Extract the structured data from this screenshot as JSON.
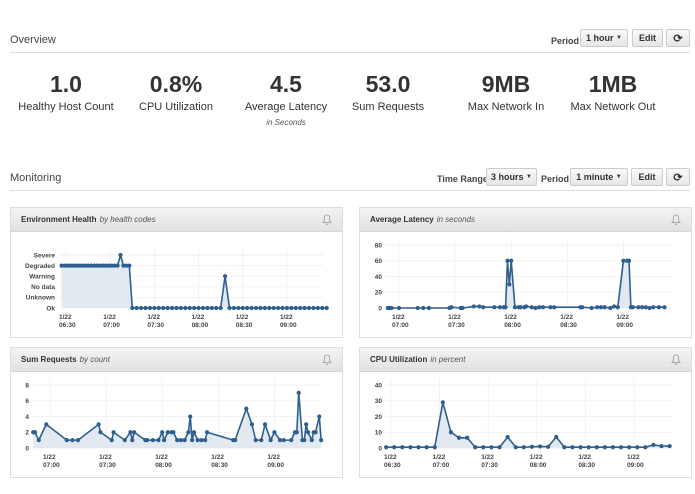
{
  "overview": {
    "title": "Overview",
    "period_label": "Period",
    "period_value": "1 hour",
    "edit_label": "Edit",
    "refresh_icon": "refresh-icon",
    "stats": [
      {
        "value": "1.0",
        "label": "Healthy Host Count"
      },
      {
        "value": "0.8%",
        "label": "CPU Utilization"
      },
      {
        "value": "4.5",
        "label": "Average Latency",
        "sub": "in Seconds"
      },
      {
        "value": "53.0",
        "label": "Sum Requests"
      },
      {
        "value": "9MB",
        "label": "Max Network In"
      },
      {
        "value": "1MB",
        "label": "Max Network Out"
      }
    ]
  },
  "monitoring": {
    "title": "Monitoring",
    "time_range_label": "Time Range",
    "time_range_value": "3 hours",
    "period_label": "Period",
    "period_value": "1 minute",
    "edit_label": "Edit",
    "refresh_icon": "refresh-icon"
  },
  "colors": {
    "line": "#2f5f8f",
    "fill": "#dbe4ee",
    "grid": "#eeeeee"
  },
  "chart_data": [
    {
      "id": "health",
      "type": "line",
      "title": "Environment Health",
      "subtitle": "by health codes",
      "y_categories": [
        "Ok",
        "Unknown",
        "No data",
        "Warning",
        "Degraded",
        "Severe"
      ],
      "x_ticks": [
        [
          "1/22",
          "06:30"
        ],
        [
          "1/22",
          "07:00"
        ],
        [
          "1/22",
          "07:30"
        ],
        [
          "1/22",
          "08:00"
        ],
        [
          "1/22",
          "08:30"
        ],
        [
          "1/22",
          "09:00"
        ]
      ],
      "points": [
        [
          "06:27",
          "Degraded"
        ],
        [
          "06:29",
          "Degraded"
        ],
        [
          "06:31",
          "Degraded"
        ],
        [
          "06:33",
          "Degraded"
        ],
        [
          "06:35",
          "Degraded"
        ],
        [
          "06:37",
          "Degraded"
        ],
        [
          "06:39",
          "Degraded"
        ],
        [
          "06:41",
          "Degraded"
        ],
        [
          "06:43",
          "Degraded"
        ],
        [
          "06:45",
          "Degraded"
        ],
        [
          "06:47",
          "Degraded"
        ],
        [
          "06:49",
          "Degraded"
        ],
        [
          "06:51",
          "Degraded"
        ],
        [
          "06:53",
          "Degraded"
        ],
        [
          "06:55",
          "Degraded"
        ],
        [
          "06:57",
          "Degraded"
        ],
        [
          "06:59",
          "Degraded"
        ],
        [
          "07:01",
          "Degraded"
        ],
        [
          "07:03",
          "Degraded"
        ],
        [
          "07:05",
          "Degraded"
        ],
        [
          "07:07",
          "Severe"
        ],
        [
          "07:09",
          "Degraded"
        ],
        [
          "07:11",
          "Degraded"
        ],
        [
          "07:13",
          "Degraded"
        ],
        [
          "07:15",
          "Ok"
        ],
        [
          "07:18",
          "Ok"
        ],
        [
          "07:21",
          "Ok"
        ],
        [
          "07:24",
          "Ok"
        ],
        [
          "07:27",
          "Ok"
        ],
        [
          "07:30",
          "Ok"
        ],
        [
          "07:33",
          "Ok"
        ],
        [
          "07:36",
          "Ok"
        ],
        [
          "07:39",
          "Ok"
        ],
        [
          "07:42",
          "Ok"
        ],
        [
          "07:45",
          "Ok"
        ],
        [
          "07:48",
          "Ok"
        ],
        [
          "07:51",
          "Ok"
        ],
        [
          "07:54",
          "Ok"
        ],
        [
          "07:57",
          "Ok"
        ],
        [
          "08:00",
          "Ok"
        ],
        [
          "08:03",
          "Ok"
        ],
        [
          "08:06",
          "Ok"
        ],
        [
          "08:09",
          "Ok"
        ],
        [
          "08:12",
          "Ok"
        ],
        [
          "08:15",
          "Ok"
        ],
        [
          "08:18",
          "Warning"
        ],
        [
          "08:21",
          "Ok"
        ],
        [
          "08:24",
          "Ok"
        ],
        [
          "08:27",
          "Ok"
        ],
        [
          "08:30",
          "Ok"
        ],
        [
          "08:33",
          "Ok"
        ],
        [
          "08:36",
          "Ok"
        ],
        [
          "08:39",
          "Ok"
        ],
        [
          "08:42",
          "Ok"
        ],
        [
          "08:45",
          "Ok"
        ],
        [
          "08:48",
          "Ok"
        ],
        [
          "08:51",
          "Ok"
        ],
        [
          "08:54",
          "Ok"
        ],
        [
          "08:57",
          "Ok"
        ],
        [
          "09:00",
          "Ok"
        ],
        [
          "09:03",
          "Ok"
        ],
        [
          "09:06",
          "Ok"
        ],
        [
          "09:09",
          "Ok"
        ],
        [
          "09:12",
          "Ok"
        ],
        [
          "09:15",
          "Ok"
        ],
        [
          "09:18",
          "Ok"
        ],
        [
          "09:21",
          "Ok"
        ],
        [
          "09:24",
          "Ok"
        ],
        [
          "09:27",
          "Ok"
        ]
      ]
    },
    {
      "id": "latency",
      "type": "area",
      "title": "Average Latency",
      "subtitle": "in seconds",
      "ylim": [
        0,
        80
      ],
      "y_ticks": [
        0,
        20,
        40,
        60,
        80
      ],
      "x_ticks": [
        [
          "1/22",
          "07:00"
        ],
        [
          "1/22",
          "07:30"
        ],
        [
          "1/22",
          "08:00"
        ],
        [
          "1/22",
          "08:30"
        ],
        [
          "1/22",
          "09:00"
        ]
      ],
      "points": [
        [
          "06:54",
          0
        ],
        [
          "06:55",
          0
        ],
        [
          "06:56",
          0
        ],
        [
          "07:00",
          0
        ],
        [
          "07:10",
          0
        ],
        [
          "07:13",
          0
        ],
        [
          "07:16",
          0
        ],
        [
          "07:27",
          0
        ],
        [
          "07:28",
          1
        ],
        [
          "07:33",
          0
        ],
        [
          "07:34",
          0
        ],
        [
          "07:40",
          2
        ],
        [
          "07:43",
          2
        ],
        [
          "07:45",
          1
        ],
        [
          "07:51",
          1
        ],
        [
          "07:54",
          1
        ],
        [
          "07:56",
          1
        ],
        [
          "07:57",
          1
        ],
        [
          "07:58",
          60
        ],
        [
          "07:59",
          30
        ],
        [
          "08:00",
          60
        ],
        [
          "08:02",
          1
        ],
        [
          "08:04",
          1
        ],
        [
          "08:05",
          1
        ],
        [
          "08:07",
          1
        ],
        [
          "08:08",
          2
        ],
        [
          "08:11",
          1
        ],
        [
          "08:13",
          0
        ],
        [
          "08:15",
          1
        ],
        [
          "08:17",
          1
        ],
        [
          "08:21",
          1
        ],
        [
          "08:23",
          1
        ],
        [
          "08:37",
          1
        ],
        [
          "08:38",
          1
        ],
        [
          "08:43",
          0
        ],
        [
          "08:46",
          1
        ],
        [
          "08:48",
          1
        ],
        [
          "08:50",
          1
        ],
        [
          "08:53",
          0
        ],
        [
          "08:55",
          2
        ],
        [
          "08:57",
          1
        ],
        [
          "09:00",
          60
        ],
        [
          "09:02",
          60
        ],
        [
          "09:03",
          60
        ],
        [
          "09:04",
          1
        ],
        [
          "09:05",
          1
        ],
        [
          "09:08",
          1
        ],
        [
          "09:10",
          1
        ],
        [
          "09:12",
          1
        ],
        [
          "09:14",
          0
        ],
        [
          "09:16",
          1
        ],
        [
          "09:19",
          1
        ],
        [
          "09:22",
          1
        ]
      ]
    },
    {
      "id": "requests",
      "type": "area",
      "title": "Sum Requests",
      "subtitle": "by count",
      "ylim": [
        0,
        8
      ],
      "y_ticks": [
        0,
        2,
        4,
        6,
        8
      ],
      "x_ticks": [
        [
          "1/22",
          "07:00"
        ],
        [
          "1/22",
          "07:30"
        ],
        [
          "1/22",
          "08:00"
        ],
        [
          "1/22",
          "08:30"
        ],
        [
          "1/22",
          "09:00"
        ]
      ],
      "points": [
        [
          "06:51",
          2
        ],
        [
          "06:52",
          2
        ],
        [
          "06:54",
          1
        ],
        [
          "06:58",
          3
        ],
        [
          "07:09",
          1
        ],
        [
          "07:12",
          1
        ],
        [
          "07:15",
          1
        ],
        [
          "07:26",
          3
        ],
        [
          "07:27",
          2
        ],
        [
          "07:33",
          1
        ],
        [
          "07:34",
          2
        ],
        [
          "07:40",
          1
        ],
        [
          "07:43",
          2
        ],
        [
          "07:44",
          1
        ],
        [
          "07:45",
          2
        ],
        [
          "07:51",
          1
        ],
        [
          "07:52",
          1
        ],
        [
          "07:55",
          1
        ],
        [
          "07:58",
          1
        ],
        [
          "08:00",
          2
        ],
        [
          "08:01",
          1
        ],
        [
          "08:03",
          2
        ],
        [
          "08:05",
          2
        ],
        [
          "08:06",
          2
        ],
        [
          "08:08",
          1
        ],
        [
          "08:10",
          1
        ],
        [
          "08:12",
          1
        ],
        [
          "08:14",
          2
        ],
        [
          "08:15",
          4
        ],
        [
          "08:16",
          1
        ],
        [
          "08:17",
          2
        ],
        [
          "08:19",
          1
        ],
        [
          "08:21",
          1
        ],
        [
          "08:23",
          1
        ],
        [
          "08:24",
          2
        ],
        [
          "08:38",
          1
        ],
        [
          "08:39",
          1
        ],
        [
          "08:45",
          5
        ],
        [
          "08:48",
          3
        ],
        [
          "08:50",
          1
        ],
        [
          "08:53",
          1
        ],
        [
          "08:55",
          3
        ],
        [
          "08:58",
          1
        ],
        [
          "09:00",
          2
        ],
        [
          "09:03",
          1
        ],
        [
          "09:05",
          1
        ],
        [
          "09:09",
          1
        ],
        [
          "09:11",
          2
        ],
        [
          "09:12",
          2
        ],
        [
          "09:13",
          7
        ],
        [
          "09:15",
          1
        ],
        [
          "09:16",
          1
        ],
        [
          "09:17",
          3
        ],
        [
          "09:18",
          2
        ],
        [
          "09:20",
          1
        ],
        [
          "09:21",
          2
        ],
        [
          "09:22",
          2
        ],
        [
          "09:24",
          4
        ],
        [
          "09:25",
          1
        ]
      ]
    },
    {
      "id": "cpu",
      "type": "area",
      "title": "CPU Utilization",
      "subtitle": "in percent",
      "ylim": [
        0,
        40
      ],
      "y_ticks": [
        0,
        10,
        20,
        30,
        40
      ],
      "x_ticks": [
        [
          "1/22",
          "06:30"
        ],
        [
          "1/22",
          "07:00"
        ],
        [
          "1/22",
          "07:30"
        ],
        [
          "1/22",
          "08:00"
        ],
        [
          "1/22",
          "08:30"
        ],
        [
          "1/22",
          "09:00"
        ]
      ],
      "points": [
        [
          "06:27",
          0.5
        ],
        [
          "06:32",
          0.5
        ],
        [
          "06:37",
          0.5
        ],
        [
          "06:42",
          0.5
        ],
        [
          "06:47",
          0.5
        ],
        [
          "06:52",
          0.5
        ],
        [
          "06:57",
          0.5
        ],
        [
          "07:02",
          29
        ],
        [
          "07:07",
          10
        ],
        [
          "07:12",
          6.5
        ],
        [
          "07:17",
          6.5
        ],
        [
          "07:22",
          0.5
        ],
        [
          "07:27",
          0.5
        ],
        [
          "07:32",
          0.5
        ],
        [
          "07:37",
          0.5
        ],
        [
          "07:42",
          7
        ],
        [
          "07:47",
          0.5
        ],
        [
          "07:52",
          0.5
        ],
        [
          "07:57",
          0.8
        ],
        [
          "08:02",
          1
        ],
        [
          "08:07",
          0.8
        ],
        [
          "08:12",
          7
        ],
        [
          "08:17",
          0.5
        ],
        [
          "08:22",
          0.5
        ],
        [
          "08:27",
          0.5
        ],
        [
          "08:32",
          0.5
        ],
        [
          "08:37",
          0.5
        ],
        [
          "08:42",
          0.5
        ],
        [
          "08:47",
          0.5
        ],
        [
          "08:52",
          0.5
        ],
        [
          "08:57",
          0.5
        ],
        [
          "09:02",
          0.5
        ],
        [
          "09:07",
          0.5
        ],
        [
          "09:12",
          2
        ],
        [
          "09:17",
          1.2
        ],
        [
          "09:22",
          1.2
        ]
      ]
    }
  ]
}
